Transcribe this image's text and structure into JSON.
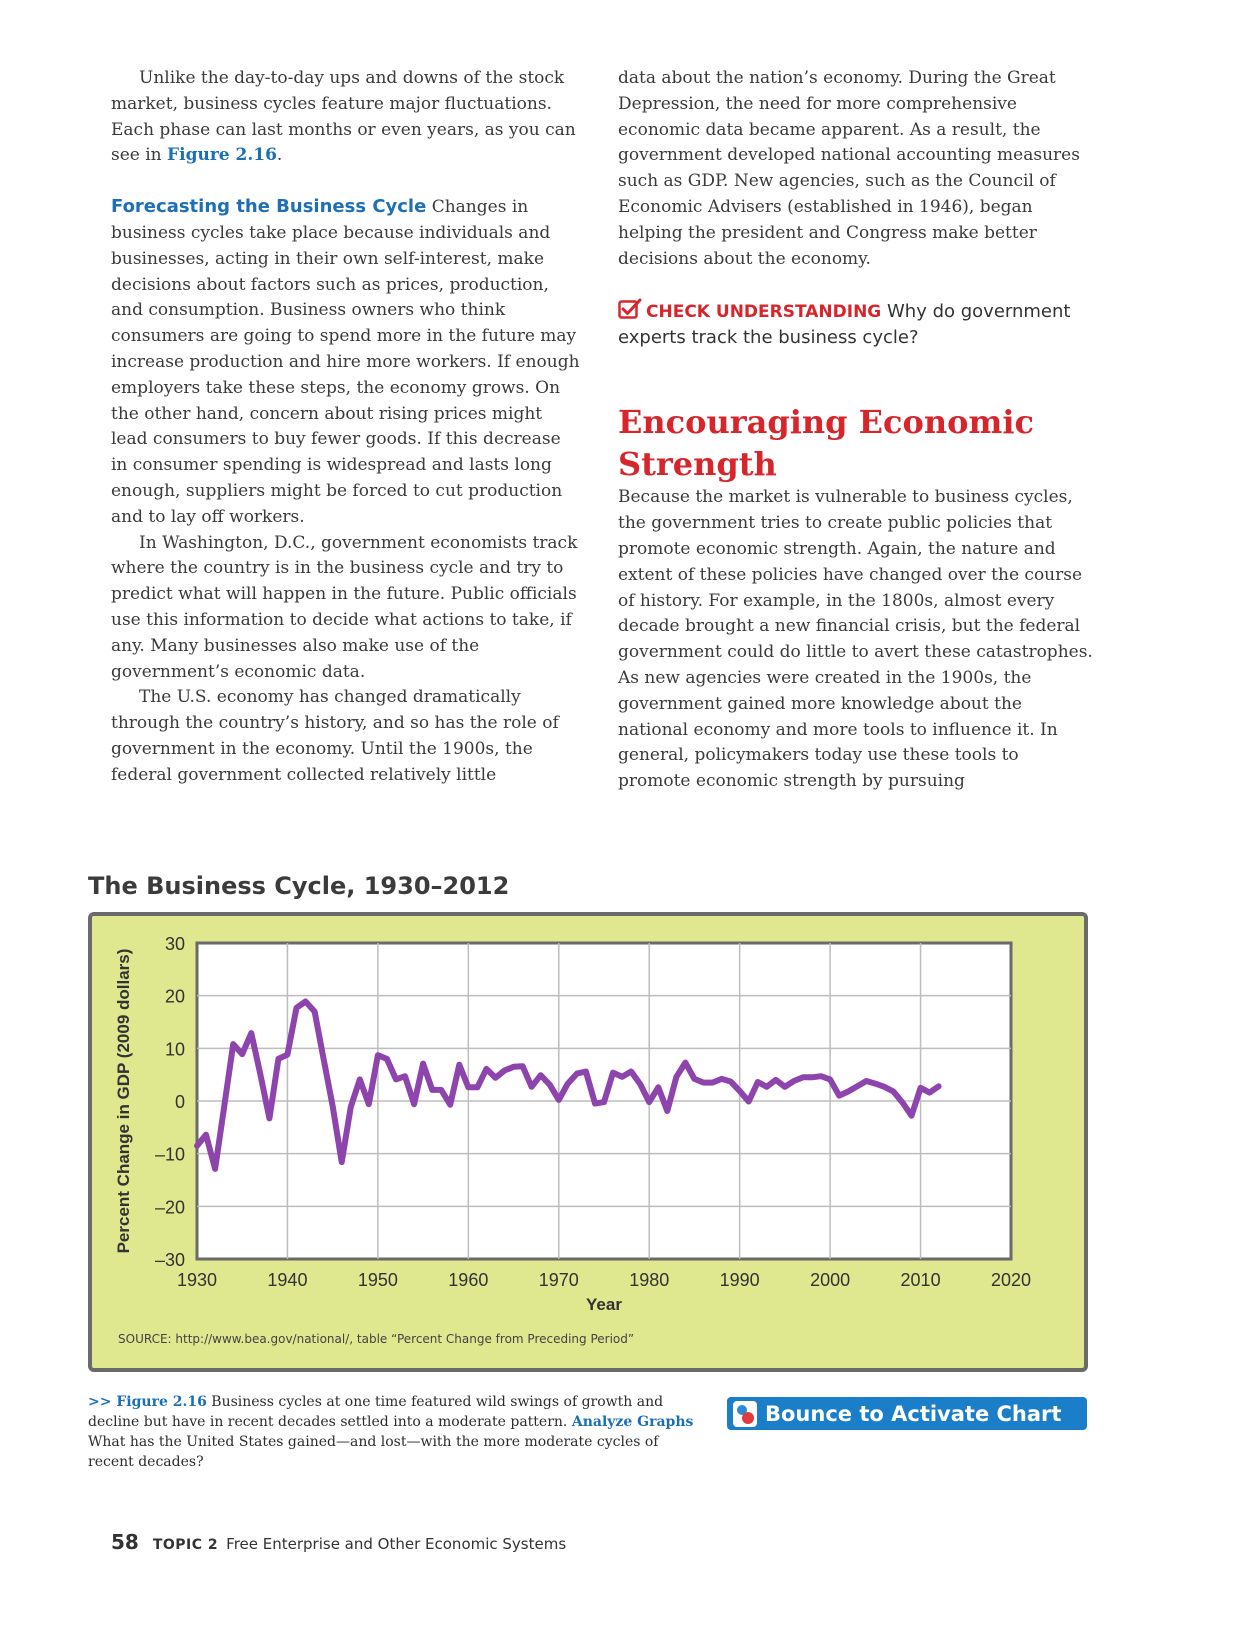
{
  "left_column": {
    "p1_text": "Unlike the day-to-day ups and downs of the stock market, business cycles feature major fluctuations. Each phase can last months or even years, as you can see in ",
    "p1_figref": "Figure 2.16",
    "p1_end": ".",
    "subhead": "Forecasting the Business Cycle",
    "p2_text": "Changes in business cycles take place because individuals and businesses, acting in their own self-interest, make decisions about factors such as prices, production, and consumption. Business owners who think consumers are going to spend more in the future may increase production and hire more workers. If enough employers take these steps, the economy grows. On the other hand, concern about rising prices might lead consumers to buy fewer goods. If this decrease in consumer spending is widespread and lasts long enough, suppliers might be forced to cut production and to lay off workers.",
    "p3_text": "In Washington, D.C., government economists track where the country is in the business cycle and try to predict what will happen in the future. Public officials use this information to decide what actions to take, if any. Many businesses also make use of the government’s economic data.",
    "p4_text": "The U.S. economy has changed dramatically through the country’s history, and so has the role of government in the economy. Until the 1900s, the federal government collected relatively little"
  },
  "right_column": {
    "p1_text": "data about the nation’s economy. During the Great Depression, the need for more comprehensive economic data became apparent. As a result, the government developed national accounting measures such as GDP. New agencies, such as the Council of Economic Advisers (established in 1946), began helping the president and Congress make better decisions about the economy.",
    "check_label": "CHECK UNDERSTANDING",
    "check_question": "Why do government experts track the business cycle?",
    "section_title": "Encouraging Economic Strength",
    "p2_text": "Because the market is vulnerable to business cycles, the government tries to create public policies that promote economic strength. Again, the nature and extent of these policies have changed over the course of history. For example, in the 1800s, almost every decade brought a new financial crisis, but the federal government could do little to avert these catastrophes. As new agencies were created in the 1900s, the government gained more knowledge about the national economy and more tools to influence it. In general, policymakers today use these tools to promote economic strength by pursuing"
  },
  "chart_data": {
    "type": "line",
    "title": "The Business Cycle, 1930–2012",
    "xlabel": "Year",
    "ylabel": "Percent Change in GDP (2009 dollars)",
    "xlim": [
      1930,
      2020
    ],
    "ylim": [
      -30,
      30
    ],
    "x_ticks": [
      "1930",
      "1940",
      "1950",
      "1960",
      "1970",
      "1980",
      "1990",
      "2000",
      "2010",
      "2020"
    ],
    "y_ticks": [
      "30",
      "20",
      "10",
      "0",
      "–10",
      "–20",
      "–30"
    ],
    "grid": true,
    "line_color": "#8e44ad",
    "series": [
      {
        "x": [
          1930,
          1931,
          1932,
          1933,
          1934,
          1935,
          1936,
          1937,
          1938,
          1939,
          1940,
          1941,
          1942,
          1943,
          1944,
          1945,
          1946,
          1947,
          1948,
          1949,
          1950,
          1951,
          1952,
          1953,
          1954,
          1955,
          1956,
          1957,
          1958,
          1959,
          1960,
          1961,
          1962,
          1963,
          1964,
          1965,
          1966,
          1967,
          1968,
          1969,
          1970,
          1971,
          1972,
          1973,
          1974,
          1975,
          1976,
          1977,
          1978,
          1979,
          1980,
          1981,
          1982,
          1983,
          1984,
          1985,
          1986,
          1987,
          1988,
          1989,
          1990,
          1991,
          1992,
          1993,
          1994,
          1995,
          1996,
          1997,
          1998,
          1999,
          2000,
          2001,
          2002,
          2003,
          2004,
          2005,
          2006,
          2007,
          2008,
          2009,
          2010,
          2011,
          2012
        ],
        "values": [
          -8.5,
          -6.4,
          -12.9,
          -1.2,
          10.8,
          8.9,
          12.9,
          5.1,
          -3.3,
          8.0,
          8.8,
          17.7,
          18.9,
          17.0,
          8.0,
          -1.0,
          -11.6,
          -1.1,
          4.1,
          -0.6,
          8.7,
          8.0,
          4.1,
          4.7,
          -0.6,
          7.1,
          2.1,
          2.1,
          -0.7,
          6.9,
          2.6,
          2.6,
          6.1,
          4.4,
          5.8,
          6.5,
          6.6,
          2.7,
          4.9,
          3.1,
          0.2,
          3.3,
          5.2,
          5.6,
          -0.5,
          -0.2,
          5.4,
          4.6,
          5.6,
          3.2,
          -0.2,
          2.6,
          -1.9,
          4.6,
          7.3,
          4.2,
          3.5,
          3.5,
          4.2,
          3.7,
          1.9,
          -0.1,
          3.6,
          2.7,
          4.0,
          2.7,
          3.8,
          4.5,
          4.5,
          4.7,
          4.1,
          1.0,
          1.8,
          2.8,
          3.8,
          3.3,
          2.7,
          1.8,
          -0.3,
          -2.8,
          2.5,
          1.6,
          2.8
        ]
      }
    ],
    "source": "SOURCE: http://www.bea.gov/national/, table “Percent Change from Preceding Period”"
  },
  "caption": {
    "prefix": ">> ",
    "fig_label": "Figure 2.16",
    "text1": " Business cycles at one time featured wild swings of growth and decline but have in recent decades settled into a moderate pattern. ",
    "analyze_label": "Analyze Graphs",
    "text2": "  What has the United States gained—and lost—with the more moderate cycles of recent decades?"
  },
  "bounce_button": {
    "label": "Bounce to Activate Chart"
  },
  "footer": {
    "page_number": "58",
    "topic": "TOPIC 2",
    "topic_title": "Free Enterprise and Other Economic Systems"
  }
}
